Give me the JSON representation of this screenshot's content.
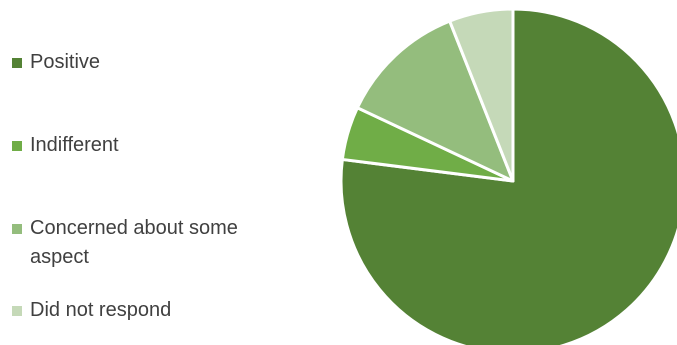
{
  "chart_data": {
    "type": "pie",
    "title": "",
    "categories": [
      "Positive",
      "Indifferent",
      "Concerned about some aspect",
      "Did not respond"
    ],
    "values": [
      77,
      5,
      12,
      6
    ],
    "colors": [
      "#548235",
      "#70AD47",
      "#94BD7D",
      "#C5D9B8"
    ],
    "start_angle_deg": 0,
    "direction": "clockwise",
    "legend_position": "left",
    "legend": {
      "items": [
        {
          "label": "Positive",
          "color": "#548235"
        },
        {
          "label": "Indifferent",
          "color": "#70AD47"
        },
        {
          "label": "Concerned about some aspect",
          "color": "#94BD7D"
        },
        {
          "label": "Did not respond",
          "color": "#C5D9B8"
        }
      ]
    }
  }
}
